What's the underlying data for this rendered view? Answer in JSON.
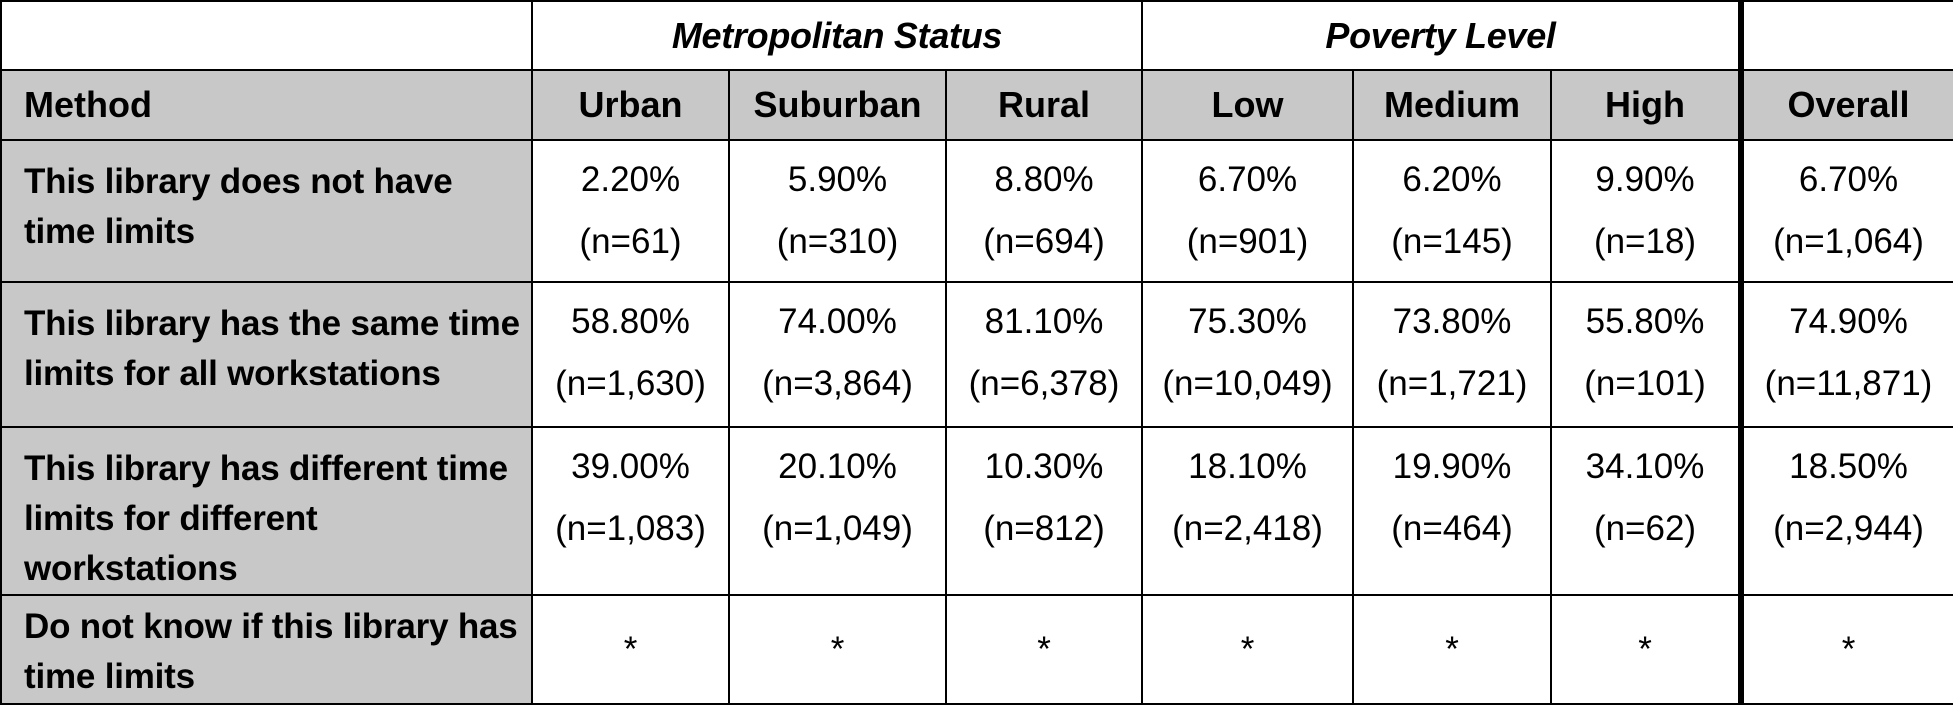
{
  "groups": {
    "metro": "Metropolitan Status",
    "poverty": "Poverty Level"
  },
  "columns": {
    "method": "Method",
    "urban": "Urban",
    "suburban": "Suburban",
    "rural": "Rural",
    "low": "Low",
    "medium": "Medium",
    "high": "High",
    "overall": "Overall"
  },
  "rows": [
    {
      "label": "This library does not have time limits",
      "cells": [
        {
          "pct": "2.20%",
          "n": "(n=61)"
        },
        {
          "pct": "5.90%",
          "n": "(n=310)"
        },
        {
          "pct": "8.80%",
          "n": "(n=694)"
        },
        {
          "pct": "6.70%",
          "n": "(n=901)"
        },
        {
          "pct": "6.20%",
          "n": "(n=145)"
        },
        {
          "pct": "9.90%",
          "n": "(n=18)"
        },
        {
          "pct": "6.70%",
          "n": "(n=1,064)"
        }
      ]
    },
    {
      "label": "This library has the same time limits for all workstations",
      "cells": [
        {
          "pct": "58.80%",
          "n": "(n=1,630)"
        },
        {
          "pct": "74.00%",
          "n": "(n=3,864)"
        },
        {
          "pct": "81.10%",
          "n": "(n=6,378)"
        },
        {
          "pct": "75.30%",
          "n": "(n=10,049)"
        },
        {
          "pct": "73.80%",
          "n": "(n=1,721)"
        },
        {
          "pct": "55.80%",
          "n": "(n=101)"
        },
        {
          "pct": "74.90%",
          "n": "(n=11,871)"
        }
      ]
    },
    {
      "label": "This library has different time limits for different workstations",
      "cells": [
        {
          "pct": "39.00%",
          "n": "(n=1,083)"
        },
        {
          "pct": "20.10%",
          "n": "(n=1,049)"
        },
        {
          "pct": "10.30%",
          "n": "(n=812)"
        },
        {
          "pct": "18.10%",
          "n": "(n=2,418)"
        },
        {
          "pct": "19.90%",
          "n": "(n=464)"
        },
        {
          "pct": "34.10%",
          "n": "(n=62)"
        },
        {
          "pct": "18.50%",
          "n": "(n=2,944)"
        }
      ]
    },
    {
      "label": "Do not know if this library has time limits",
      "cells": [
        {
          "value": "*"
        },
        {
          "value": "*"
        },
        {
          "value": "*"
        },
        {
          "value": "*"
        },
        {
          "value": "*"
        },
        {
          "value": "*"
        },
        {
          "value": "*"
        }
      ]
    }
  ]
}
